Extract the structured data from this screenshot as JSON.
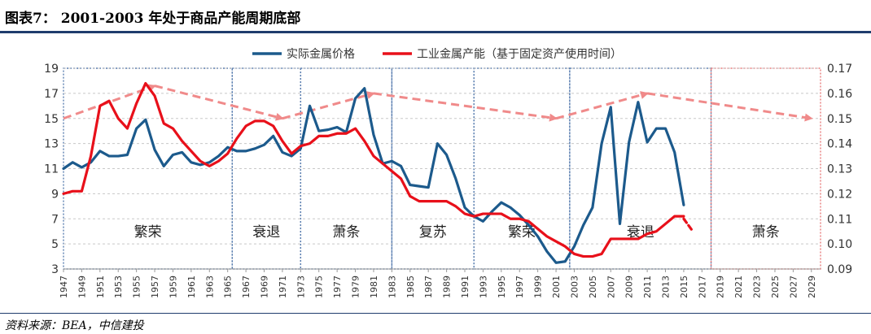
{
  "title": "图表7： 2001-2003 年处于商品产能周期底部",
  "source": "资料来源：BEA，中信建投",
  "colors": {
    "price": "#1c5a8c",
    "capacity": "#e8101a",
    "trend": "#f08a8a",
    "divider": "#5b7fb0",
    "forecast_divider": "#e87a7a",
    "text": "#333333"
  },
  "chart_data": {
    "type": "line",
    "title": "",
    "xlabel": "",
    "ylabel": "",
    "x_start": 1947,
    "x_end": 2030,
    "x_ticks": [
      "1947",
      "1949",
      "1951",
      "1953",
      "1955",
      "1957",
      "1959",
      "1961",
      "1963",
      "1965",
      "1967",
      "1969",
      "1971",
      "1973",
      "1975",
      "1977",
      "1979",
      "1981",
      "1983",
      "1985",
      "1987",
      "1989",
      "1991",
      "1993",
      "1995",
      "1997",
      "1999",
      "2001",
      "2003",
      "2005",
      "2007",
      "2009",
      "2011",
      "2013",
      "2015",
      "2017",
      "2019",
      "2021",
      "2023",
      "2025",
      "2027",
      "2029"
    ],
    "y_left": {
      "min": 3,
      "max": 19,
      "ticks": [
        "3",
        "5",
        "7",
        "9",
        "11",
        "13",
        "15",
        "17",
        "19"
      ]
    },
    "y_right": {
      "min": 0.09,
      "max": 0.17,
      "ticks": [
        "0.09",
        "0.10",
        "0.11",
        "0.12",
        "0.13",
        "0.14",
        "0.15",
        "0.16",
        "0.17"
      ]
    },
    "legend": {
      "position": "top-center",
      "entries": [
        "实际金属价格",
        "工业金属产能（基于固定资产使用时间）"
      ]
    },
    "series": [
      {
        "name": "实际金属价格",
        "axis": "left",
        "x": [
          1947,
          1948,
          1949,
          1950,
          1951,
          1952,
          1953,
          1954,
          1955,
          1956,
          1957,
          1958,
          1959,
          1960,
          1961,
          1962,
          1963,
          1964,
          1965,
          1966,
          1967,
          1968,
          1969,
          1970,
          1971,
          1972,
          1973,
          1974,
          1975,
          1976,
          1977,
          1978,
          1979,
          1980,
          1981,
          1982,
          1983,
          1984,
          1985,
          1986,
          1987,
          1988,
          1989,
          1990,
          1991,
          1992,
          1993,
          1994,
          1995,
          1996,
          1997,
          1998,
          1999,
          2000,
          2001,
          2002,
          2003,
          2004,
          2005,
          2006,
          2007,
          2008,
          2009,
          2010,
          2011,
          2012,
          2013,
          2014,
          2015
        ],
        "values": [
          11.0,
          11.5,
          11.1,
          11.5,
          12.4,
          12.0,
          12.0,
          12.1,
          14.2,
          14.9,
          12.5,
          11.2,
          12.1,
          12.3,
          11.5,
          11.3,
          11.5,
          12.0,
          12.7,
          12.4,
          12.4,
          12.6,
          12.9,
          13.6,
          12.3,
          12.0,
          12.6,
          16.0,
          14.0,
          14.1,
          14.3,
          13.9,
          16.6,
          17.4,
          13.7,
          11.4,
          11.6,
          11.2,
          9.7,
          9.6,
          9.5,
          13.0,
          12.1,
          10.2,
          7.9,
          7.2,
          6.8,
          7.6,
          8.3,
          7.9,
          7.3,
          6.5,
          5.6,
          4.4,
          3.5,
          3.6,
          4.8,
          6.5,
          7.9,
          13.0,
          15.9,
          6.6,
          13.1,
          16.3,
          13.1,
          14.2,
          14.2,
          12.3,
          8.1
        ]
      },
      {
        "name": "工业金属产能（基于固定资产使用时间）",
        "axis": "right",
        "x": [
          1947,
          1948,
          1949,
          1950,
          1951,
          1952,
          1953,
          1954,
          1955,
          1956,
          1957,
          1958,
          1959,
          1960,
          1961,
          1962,
          1963,
          1964,
          1965,
          1966,
          1967,
          1968,
          1969,
          1970,
          1971,
          1972,
          1973,
          1974,
          1975,
          1976,
          1977,
          1978,
          1979,
          1980,
          1981,
          1982,
          1983,
          1984,
          1985,
          1986,
          1987,
          1988,
          1989,
          1990,
          1991,
          1992,
          1993,
          1994,
          1995,
          1996,
          1997,
          1998,
          1999,
          2000,
          2001,
          2002,
          2003,
          2004,
          2005,
          2006,
          2007,
          2008,
          2009,
          2010,
          2011,
          2012,
          2013,
          2014,
          2015
        ],
        "values": [
          0.12,
          0.121,
          0.121,
          0.135,
          0.155,
          0.157,
          0.15,
          0.146,
          0.156,
          0.164,
          0.159,
          0.148,
          0.146,
          0.141,
          0.137,
          0.133,
          0.131,
          0.133,
          0.136,
          0.142,
          0.147,
          0.149,
          0.149,
          0.147,
          0.141,
          0.136,
          0.139,
          0.14,
          0.143,
          0.143,
          0.144,
          0.144,
          0.146,
          0.141,
          0.135,
          0.132,
          0.129,
          0.126,
          0.119,
          0.117,
          0.117,
          0.117,
          0.117,
          0.115,
          0.112,
          0.111,
          0.112,
          0.112,
          0.112,
          0.11,
          0.11,
          0.109,
          0.106,
          0.103,
          0.101,
          0.099,
          0.096,
          0.095,
          0.095,
          0.096,
          0.102,
          0.102,
          0.102,
          0.102,
          0.104,
          0.105,
          0.108,
          0.111,
          0.111
        ]
      },
      {
        "name": "工业金属产能（延伸）",
        "axis": "right",
        "dashed": true,
        "x": [
          2015,
          2016
        ],
        "values": [
          0.11,
          0.105
        ]
      }
    ],
    "trend_lines": [
      {
        "name": "trend-up-1",
        "from": [
          1947,
          15.0
        ],
        "to": [
          1957,
          17.6
        ]
      },
      {
        "name": "trend-down-1",
        "from": [
          1957,
          17.6
        ],
        "to": [
          1971,
          15.0
        ]
      },
      {
        "name": "trend-up-2",
        "from": [
          1971,
          15.0
        ],
        "to": [
          1981,
          17.0
        ]
      },
      {
        "name": "trend-down-2",
        "from": [
          1981,
          17.0
        ],
        "to": [
          2001,
          15.0
        ]
      },
      {
        "name": "trend-up-3",
        "from": [
          2001,
          15.0
        ],
        "to": [
          2011,
          17.0
        ]
      },
      {
        "name": "trend-down-3",
        "from": [
          2011,
          17.0
        ],
        "to": [
          2029,
          15.0
        ]
      }
    ],
    "phases": [
      {
        "label": "繁荣",
        "from": 1947,
        "to": 1965.5
      },
      {
        "label": "衰退",
        "from": 1965.5,
        "to": 1973
      },
      {
        "label": "萧条",
        "from": 1973,
        "to": 1983
      },
      {
        "label": "复苏",
        "from": 1983,
        "to": 1992
      },
      {
        "label": "繁荣",
        "from": 1992,
        "to": 2002.5
      },
      {
        "label": "衰退",
        "from": 2002.5,
        "to": 2018
      },
      {
        "label": "萧条",
        "from": 2018,
        "to": 2030,
        "forecast": true
      }
    ]
  }
}
